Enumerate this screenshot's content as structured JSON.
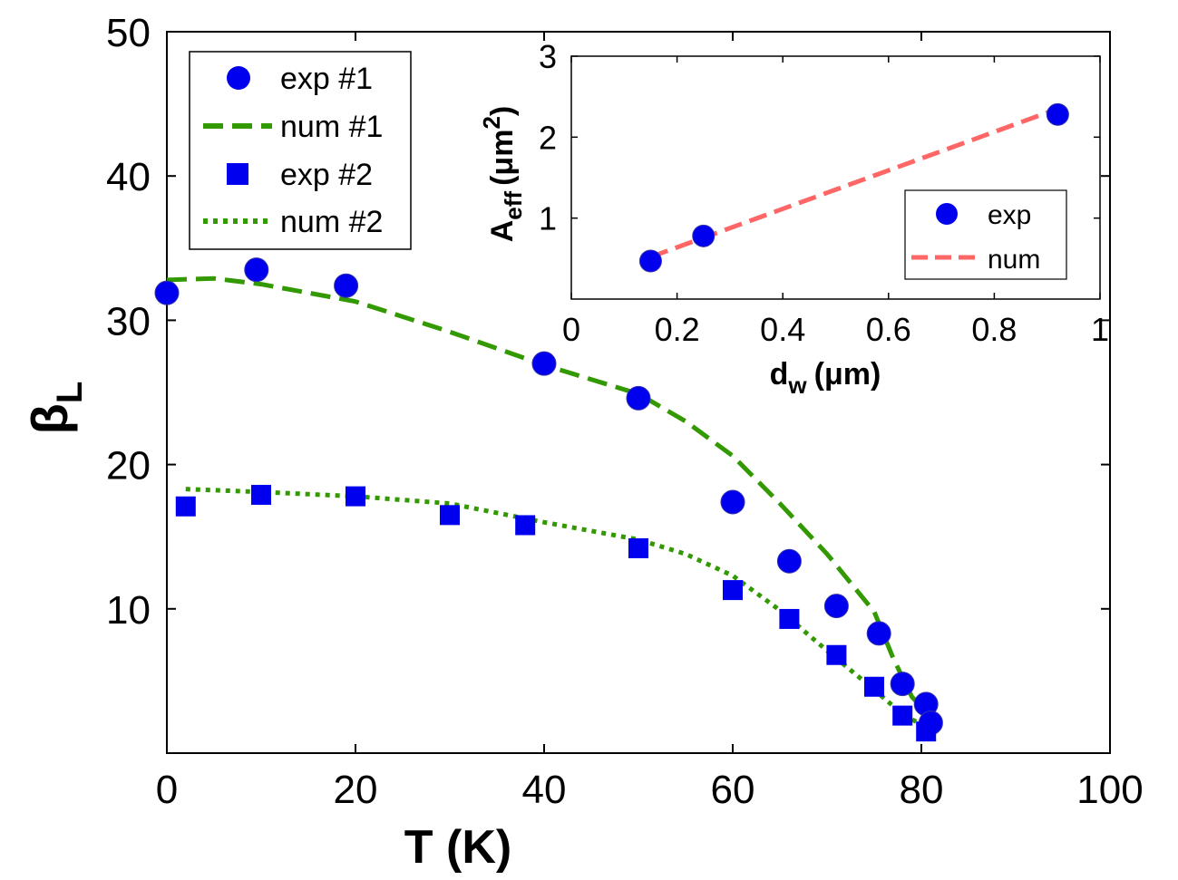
{
  "chart_data": [
    {
      "type": "scatter+line",
      "title": "",
      "xlabel": "T (K)",
      "ylabel_symbol": "β",
      "ylabel_subscript": "L",
      "xlim": [
        0,
        100
      ],
      "ylim": [
        0,
        50
      ],
      "xticks": [
        "0",
        "20",
        "40",
        "60",
        "80",
        "100"
      ],
      "yticks": [
        "10",
        "20",
        "30",
        "40",
        "50"
      ],
      "legend_position": "top-left",
      "colors": {
        "marker": "#0000ee",
        "line": "#339900"
      },
      "series": [
        {
          "name": "exp #1",
          "kind": "marker-circle",
          "x": [
            0,
            9.5,
            19,
            40,
            50,
            60,
            66,
            71,
            75.5,
            78,
            80.5,
            81
          ],
          "y": [
            31.9,
            33.5,
            32.4,
            27,
            24.6,
            17.4,
            13.3,
            10.2,
            8.3,
            4.8,
            3.4,
            2.1
          ]
        },
        {
          "name": "num #1",
          "kind": "dashed-line",
          "x": [
            0,
            5,
            10,
            20,
            30,
            40,
            50,
            55,
            60,
            65,
            70,
            75,
            77,
            79,
            81
          ],
          "y": [
            32.8,
            32.9,
            32.5,
            31.3,
            29.2,
            26.9,
            24.9,
            23.0,
            20.6,
            17.3,
            13.8,
            9.8,
            6.6,
            3.9,
            2.5
          ]
        },
        {
          "name": "exp #2",
          "kind": "marker-square",
          "x": [
            2,
            10,
            20,
            30,
            38,
            50,
            60,
            66,
            71,
            75,
            78,
            80.5
          ],
          "y": [
            17.1,
            17.9,
            17.8,
            16.5,
            15.8,
            14.2,
            11.3,
            9.3,
            6.8,
            4.6,
            2.6,
            1.5
          ]
        },
        {
          "name": "num #2",
          "kind": "dotted-line",
          "x": [
            2,
            10,
            20,
            30,
            40,
            50,
            55,
            60,
            65,
            70,
            75,
            78,
            80.5
          ],
          "y": [
            18.3,
            18.1,
            17.8,
            17.3,
            16.0,
            14.8,
            13.8,
            12.3,
            9.9,
            7.1,
            4.4,
            2.7,
            1.8
          ]
        }
      ]
    },
    {
      "type": "scatter+line",
      "title": "",
      "xlabel": "d",
      "xlabel_subscript": "w",
      "xlabel_unit": "(μm)",
      "ylabel": "A",
      "ylabel_subscript": "eff",
      "ylabel_unit": "(μm",
      "ylabel_superscript": "2",
      "ylabel_close": ")",
      "xlim": [
        0,
        1
      ],
      "ylim": [
        0,
        3
      ],
      "xticks": [
        "0",
        "0.2",
        "0.4",
        "0.6",
        "0.8",
        "1"
      ],
      "yticks": [
        "1",
        "2",
        "3"
      ],
      "legend_position": "bottom-right",
      "colors": {
        "marker": "#0000ee",
        "line": "#ff6666"
      },
      "series": [
        {
          "name": "exp",
          "kind": "marker-circle",
          "x": [
            0.15,
            0.25,
            0.92
          ],
          "y": [
            0.47,
            0.78,
            2.28
          ]
        },
        {
          "name": "num",
          "kind": "dashed-line",
          "x": [
            0.15,
            0.92
          ],
          "y": [
            0.52,
            2.35
          ]
        }
      ]
    }
  ]
}
